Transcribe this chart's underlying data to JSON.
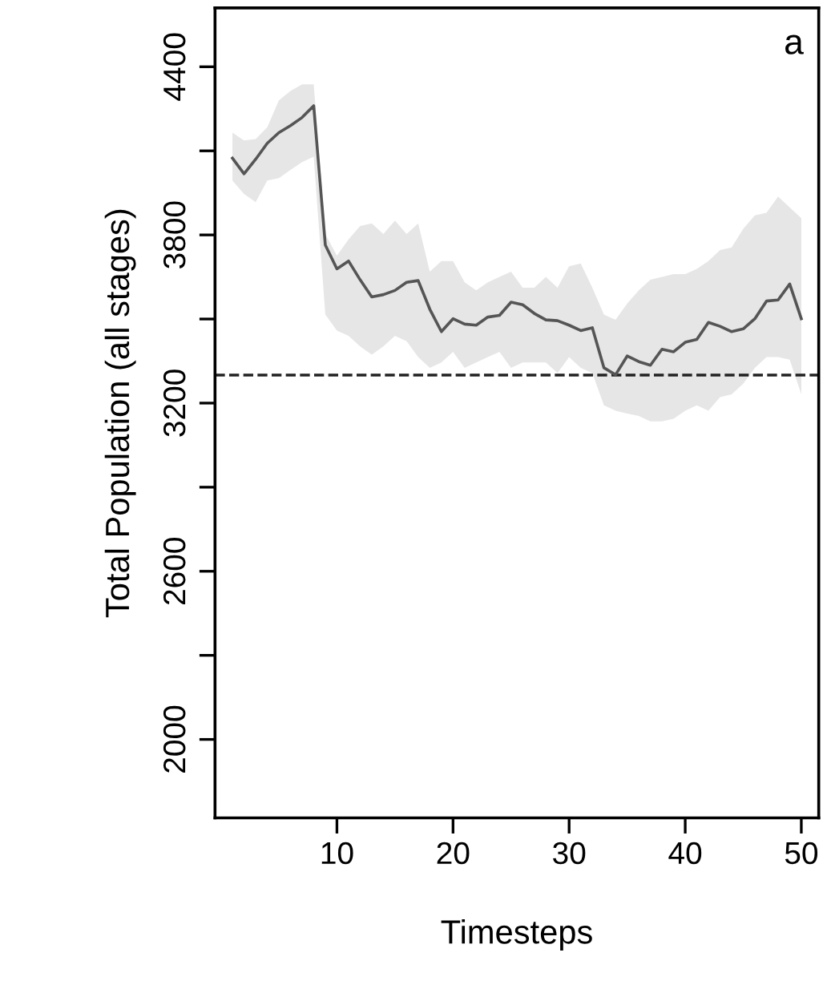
{
  "chart_data": {
    "type": "line",
    "xlabel": "Timesteps",
    "ylabel": "Total Population (all stages)",
    "annotations": [
      "a"
    ],
    "x": [
      1,
      2,
      3,
      4,
      5,
      6,
      7,
      8,
      9,
      10,
      11,
      12,
      13,
      14,
      15,
      16,
      17,
      18,
      19,
      20,
      21,
      22,
      23,
      24,
      25,
      26,
      27,
      28,
      29,
      30,
      31,
      32,
      33,
      34,
      35,
      36,
      37,
      38,
      39,
      40,
      41,
      42,
      43,
      44,
      45,
      46,
      47,
      48,
      49,
      50
    ],
    "series": [
      {
        "color": "#555555",
        "values": [
          4074,
          4018,
          4070,
          4127,
          4165,
          4190,
          4219,
          4261,
          3764,
          3679,
          3707,
          3640,
          3579,
          3587,
          3602,
          3631,
          3637,
          3535,
          3455,
          3501,
          3482,
          3478,
          3507,
          3513,
          3560,
          3551,
          3520,
          3497,
          3494,
          3478,
          3459,
          3469,
          3326,
          3301,
          3368,
          3348,
          3335,
          3392,
          3383,
          3417,
          3427,
          3488,
          3474,
          3455,
          3465,
          3501,
          3564,
          3568,
          3625,
          3501
        ],
        "upper": [
          4165,
          4137,
          4142,
          4184,
          4280,
          4314,
          4337,
          4337,
          3803,
          3726,
          3784,
          3832,
          3841,
          3803,
          3851,
          3803,
          3841,
          3669,
          3707,
          3707,
          3631,
          3602,
          3631,
          3650,
          3669,
          3612,
          3612,
          3650,
          3612,
          3688,
          3698,
          3612,
          3516,
          3497,
          3555,
          3602,
          3640,
          3650,
          3660,
          3660,
          3679,
          3707,
          3746,
          3755,
          3822,
          3870,
          3879,
          3937,
          3898,
          3860
        ],
        "lower": [
          3994,
          3946,
          3917,
          3994,
          4003,
          4032,
          4060,
          4079,
          3516,
          3459,
          3440,
          3402,
          3373,
          3402,
          3440,
          3421,
          3364,
          3326,
          3345,
          3383,
          3326,
          3345,
          3364,
          3383,
          3326,
          3345,
          3345,
          3345,
          3307,
          3364,
          3326,
          3307,
          3192,
          3173,
          3163,
          3154,
          3135,
          3135,
          3144,
          3173,
          3192,
          3173,
          3221,
          3231,
          3269,
          3326,
          3364,
          3364,
          3355,
          3231
        ]
      }
    ],
    "ref_lines": [
      {
        "axis": "y",
        "value": 3300,
        "color": "#222222",
        "line_style": "dashed"
      }
    ],
    "xlim": [
      -0.5,
      51.5
    ],
    "ylim": [
      1720,
      4610
    ],
    "xticks": [
      10,
      20,
      30,
      40,
      50
    ],
    "yticks": [
      2000,
      {
        "value": 2300,
        "label": null
      },
      2600,
      {
        "value": 2900,
        "label": null
      },
      3200,
      {
        "value": 3500,
        "label": null
      },
      3800,
      {
        "value": 4100,
        "label": null
      },
      4400
    ],
    "grid": false,
    "marker": "none",
    "line_style": "solid"
  }
}
